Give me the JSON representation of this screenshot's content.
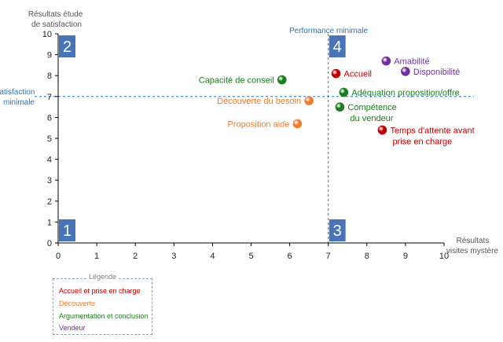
{
  "chart_data": {
    "type": "scatter",
    "xlabel": [
      "Résultats",
      "visites mystère"
    ],
    "ylabel": [
      "Résultats étude",
      "de satisfaction"
    ],
    "xlim": [
      0,
      10
    ],
    "ylim": [
      0,
      10
    ],
    "xticks": [
      "0",
      "1",
      "2",
      "3",
      "4",
      "5",
      "6",
      "7",
      "8",
      "9",
      "10"
    ],
    "yticks": [
      "0",
      "1",
      "2",
      "3",
      "4",
      "5",
      "6",
      "7",
      "8",
      "9",
      "10"
    ],
    "reference_lines": {
      "vertical": {
        "x": 7,
        "label": "Performance minimale"
      },
      "horizontal": {
        "y": 7,
        "label": [
          "Satisfaction",
          "minimale"
        ]
      }
    },
    "quadrants": [
      {
        "label": "2",
        "corner": "top-left"
      },
      {
        "label": "4",
        "corner": "top-right"
      },
      {
        "label": "1",
        "corner": "bottom-left"
      },
      {
        "label": "3",
        "corner": "bottom-right"
      }
    ],
    "categories": [
      {
        "name": "Accueil et prise en charge",
        "color": "#c00000"
      },
      {
        "name": "Découverte",
        "color": "#ed7d31"
      },
      {
        "name": "Argumentation et conclusion",
        "color": "#1e7b1e"
      },
      {
        "name": "Vendeur",
        "color": "#7030a0"
      }
    ],
    "points": [
      {
        "label": [
          "Capacité de conseil"
        ],
        "x": 5.8,
        "y": 7.8,
        "category": 2,
        "label_side": "left"
      },
      {
        "label": [
          "Découverte du besoin"
        ],
        "x": 6.5,
        "y": 6.8,
        "category": 1,
        "label_side": "left"
      },
      {
        "label": [
          "Proposition aide"
        ],
        "x": 6.2,
        "y": 5.7,
        "category": 1,
        "label_side": "left"
      },
      {
        "label": [
          "Accueil"
        ],
        "x": 7.2,
        "y": 8.1,
        "category": 0,
        "label_side": "right"
      },
      {
        "label": [
          "Amabilité"
        ],
        "x": 8.5,
        "y": 8.7,
        "category": 3,
        "label_side": "right"
      },
      {
        "label": [
          "Disponibilité"
        ],
        "x": 9.0,
        "y": 8.2,
        "category": 3,
        "label_side": "right"
      },
      {
        "label": [
          "Adéquation  proposition/offre"
        ],
        "x": 7.4,
        "y": 7.2,
        "category": 2,
        "label_side": "right"
      },
      {
        "label": [
          "Compétence",
          "du vendeur"
        ],
        "x": 7.3,
        "y": 6.5,
        "category": 2,
        "label_side": "right"
      },
      {
        "label": [
          "Temps d'attente avant",
          "prise  en charge"
        ],
        "x": 8.4,
        "y": 5.4,
        "category": 0,
        "label_side": "right"
      }
    ],
    "legend": {
      "title": "Légende",
      "placement": "bottom-left"
    }
  }
}
